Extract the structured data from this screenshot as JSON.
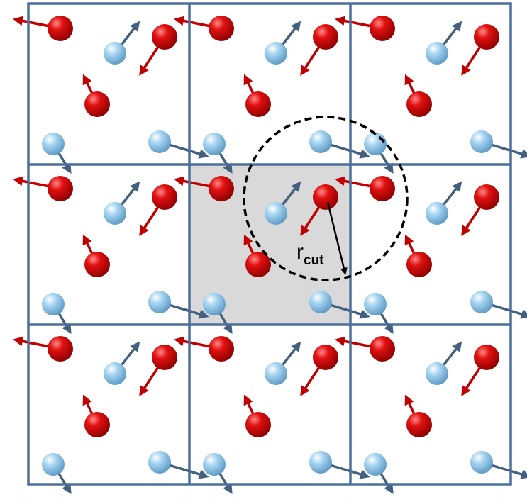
{
  "label": {
    "main": "r",
    "subscript": "cut"
  }
}
